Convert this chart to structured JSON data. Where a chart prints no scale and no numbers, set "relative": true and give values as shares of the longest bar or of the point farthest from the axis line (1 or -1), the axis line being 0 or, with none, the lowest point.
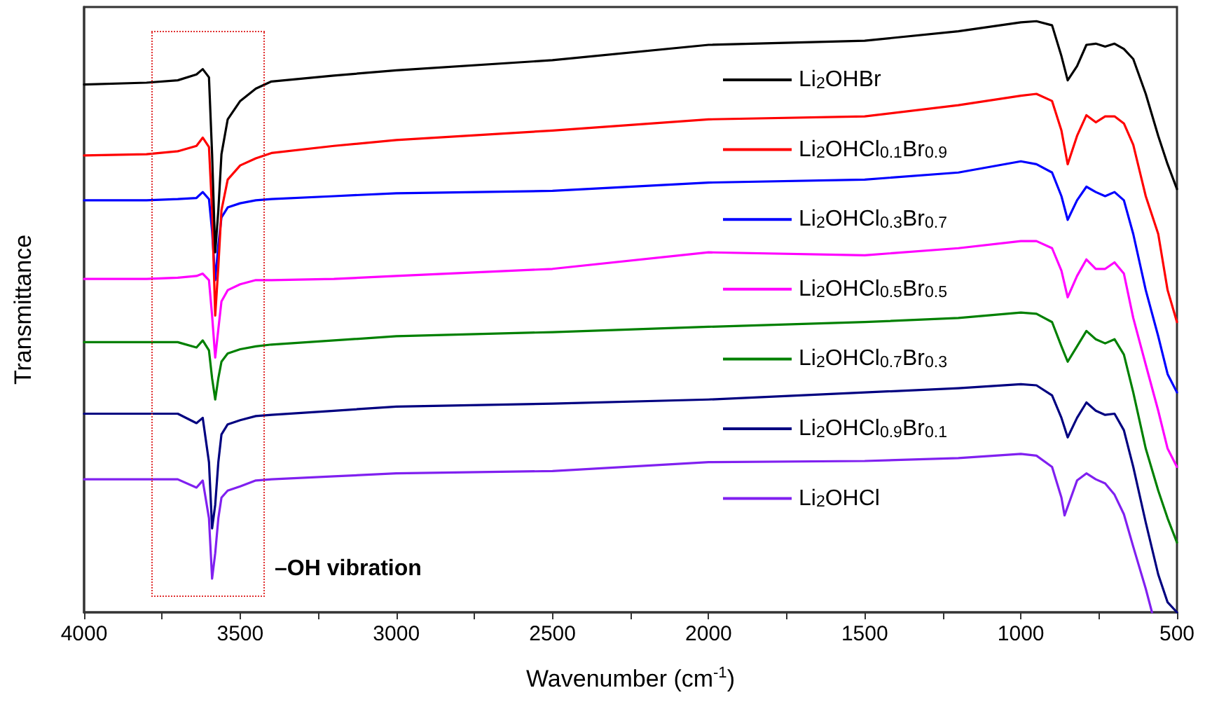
{
  "chart_data": {
    "type": "line",
    "relative": true,
    "xlabel": "Wavenumber (cm$^{-1}$)",
    "ylabel": "Transmittance",
    "xlim": [
      4000,
      500
    ],
    "xticks": [
      4000,
      {
        "value": 3750,
        "label": null
      },
      3500,
      {
        "value": 3250,
        "label": null
      },
      3000,
      {
        "value": 2750,
        "label": null
      },
      2500,
      {
        "value": 2250,
        "label": null
      },
      2000,
      {
        "value": 1750,
        "label": null
      },
      1500,
      {
        "value": 1250,
        "label": null
      },
      1000,
      {
        "value": 750,
        "label": null
      },
      500
    ],
    "tick_labels": "x",
    "marker": "none",
    "line_style": "solid",
    "legend": "right",
    "annotations": [
      "–OH vibration"
    ],
    "x": [
      4000,
      3800,
      3700,
      3640,
      3620,
      3600,
      3590,
      3580,
      3570,
      3560,
      3540,
      3500,
      3450,
      3400,
      3200,
      3000,
      2500,
      2000,
      1500,
      1200,
      1000,
      950,
      900,
      870,
      850,
      820,
      790,
      760,
      730,
      700,
      670,
      640,
      600,
      560,
      530,
      500
    ],
    "series": [
      {
        "name": "Li$_{2}$OHBr",
        "color": "#000000",
        "values": [
          0.893,
          0.896,
          0.9,
          0.91,
          0.919,
          0.905,
          0.775,
          0.609,
          0.68,
          0.775,
          0.834,
          0.865,
          0.886,
          0.898,
          0.908,
          0.917,
          0.934,
          0.96,
          0.967,
          0.983,
          0.998,
          1.0,
          0.993,
          0.941,
          0.9,
          0.924,
          0.96,
          0.962,
          0.957,
          0.962,
          0.953,
          0.936,
          0.877,
          0.806,
          0.758,
          0.716
        ]
      },
      {
        "name": "Li$_{2}$OHCl$_{0.1}$Br$_{0.9}$",
        "color": "#ff0000",
        "values": [
          0.773,
          0.775,
          0.78,
          0.789,
          0.803,
          0.787,
          0.68,
          0.502,
          0.585,
          0.68,
          0.732,
          0.756,
          0.768,
          0.777,
          0.789,
          0.799,
          0.815,
          0.834,
          0.839,
          0.858,
          0.874,
          0.877,
          0.865,
          0.815,
          0.758,
          0.806,
          0.841,
          0.829,
          0.839,
          0.839,
          0.827,
          0.791,
          0.704,
          0.64,
          0.545,
          0.491
        ]
      },
      {
        "name": "Li$_{2}$OHCl$_{0.3}$Br$_{0.7}$",
        "color": "#0000ff",
        "values": [
          0.697,
          0.697,
          0.699,
          0.701,
          0.711,
          0.699,
          0.645,
          0.562,
          0.621,
          0.668,
          0.685,
          0.692,
          0.697,
          0.699,
          0.704,
          0.709,
          0.713,
          0.727,
          0.732,
          0.744,
          0.763,
          0.758,
          0.744,
          0.704,
          0.664,
          0.697,
          0.72,
          0.711,
          0.704,
          0.711,
          0.697,
          0.64,
          0.545,
          0.467,
          0.403,
          0.372
        ]
      },
      {
        "name": "Li$_{2}$OHCl$_{0.5}$Br$_{0.5}$",
        "color": "#ff00ff",
        "values": [
          0.564,
          0.564,
          0.566,
          0.569,
          0.573,
          0.562,
          0.502,
          0.431,
          0.479,
          0.526,
          0.545,
          0.555,
          0.562,
          0.562,
          0.564,
          0.569,
          0.581,
          0.609,
          0.604,
          0.616,
          0.628,
          0.628,
          0.616,
          0.578,
          0.533,
          0.569,
          0.597,
          0.581,
          0.581,
          0.592,
          0.573,
          0.498,
          0.419,
          0.341,
          0.277,
          0.246
        ]
      },
      {
        "name": "Li$_{2}$OHCl$_{0.7}$Br$_{0.3}$",
        "color": "#008000",
        "values": [
          0.457,
          0.457,
          0.457,
          0.448,
          0.46,
          0.443,
          0.396,
          0.36,
          0.396,
          0.424,
          0.438,
          0.445,
          0.45,
          0.453,
          0.46,
          0.467,
          0.474,
          0.483,
          0.491,
          0.498,
          0.507,
          0.505,
          0.491,
          0.45,
          0.424,
          0.45,
          0.476,
          0.462,
          0.455,
          0.462,
          0.436,
          0.372,
          0.277,
          0.206,
          0.159,
          0.118
        ]
      },
      {
        "name": "Li$_{2}$OHCl$_{0.9}$Br$_{0.1}$",
        "color": "#000080",
        "values": [
          0.336,
          0.336,
          0.336,
          0.32,
          0.329,
          0.254,
          0.142,
          0.182,
          0.254,
          0.301,
          0.318,
          0.325,
          0.332,
          0.334,
          0.341,
          0.348,
          0.353,
          0.36,
          0.372,
          0.379,
          0.386,
          0.384,
          0.367,
          0.329,
          0.296,
          0.329,
          0.355,
          0.341,
          0.334,
          0.336,
          0.308,
          0.246,
          0.152,
          0.064,
          0.017,
          0
        ]
      },
      {
        "name": "Li$_{2}$OHCl",
        "color": "#8020f0",
        "x": [
          4000,
          3800,
          3700,
          3640,
          3620,
          3600,
          3590,
          3580,
          3570,
          3560,
          3540,
          3500,
          3450,
          3400,
          3200,
          3000,
          2500,
          2000,
          1500,
          1200,
          1000,
          950,
          900,
          870,
          860,
          820,
          790,
          760,
          730,
          700,
          670,
          640,
          600,
          580
        ],
        "values": [
          0.225,
          0.225,
          0.225,
          0.211,
          0.223,
          0.159,
          0.057,
          0.1,
          0.159,
          0.194,
          0.206,
          0.213,
          0.223,
          0.225,
          0.23,
          0.235,
          0.239,
          0.254,
          0.256,
          0.261,
          0.268,
          0.265,
          0.246,
          0.194,
          0.164,
          0.223,
          0.235,
          0.225,
          0.218,
          0.199,
          0.166,
          0.111,
          0.04,
          0
        ]
      }
    ]
  }
}
